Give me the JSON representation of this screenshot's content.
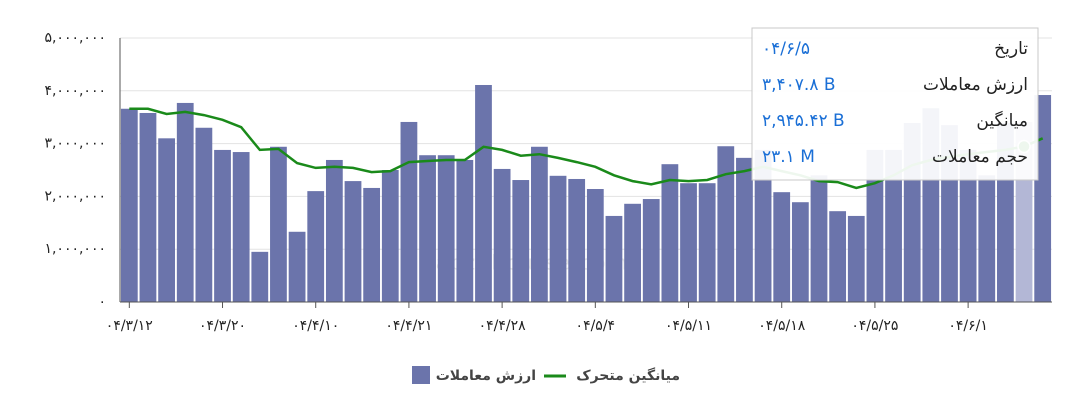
{
  "chart_data": {
    "type": "bar-line",
    "watermark": "nabzebourse.com",
    "categories": [
      "۰۴/۳/۱۲",
      null,
      null,
      null,
      null,
      "۰۴/۳/۲۰",
      null,
      null,
      null,
      null,
      "۰۴/۴/۱۰",
      null,
      null,
      null,
      null,
      "۰۴/۴/۲۱",
      null,
      null,
      null,
      null,
      "۰۴/۴/۲۸",
      null,
      null,
      null,
      null,
      "۰۴/۵/۴",
      null,
      null,
      null,
      null,
      "۰۴/۵/۱۱",
      null,
      null,
      null,
      null,
      "۰۴/۵/۱۸",
      null,
      null,
      null,
      null,
      "۰۴/۵/۲۵",
      null,
      null,
      null,
      null,
      "۰۴/۶/۱",
      null,
      null,
      null,
      null
    ],
    "series": [
      {
        "name": "ارزش معاملات",
        "type": "bar",
        "color": "#6b74ab",
        "values": [
          3660000,
          3580000,
          3100000,
          3770000,
          3300000,
          2880000,
          2840000,
          950000,
          2940000,
          1330000,
          2100000,
          2690000,
          2290000,
          2160000,
          2500000,
          3410000,
          2780000,
          2780000,
          2690000,
          4110000,
          2520000,
          2310000,
          2940000,
          2390000,
          2330000,
          2140000,
          1630000,
          1860000,
          1950000,
          2610000,
          2250000,
          2250000,
          2950000,
          2730000,
          2880000,
          2080000,
          1890000,
          2400000,
          1720000,
          1630000,
          2880000,
          2880000,
          3390000,
          3670000,
          3350000,
          2880000,
          2400000,
          3390000,
          3407800,
          3920000
        ]
      },
      {
        "name": "میانگین متحرک",
        "type": "line",
        "color": "#1a8a1a",
        "values": [
          3660000,
          3660000,
          3560000,
          3600000,
          3540000,
          3450000,
          3310000,
          2880000,
          2900000,
          2630000,
          2540000,
          2560000,
          2540000,
          2460000,
          2480000,
          2650000,
          2670000,
          2690000,
          2690000,
          2940000,
          2880000,
          2770000,
          2800000,
          2730000,
          2650000,
          2560000,
          2400000,
          2290000,
          2230000,
          2310000,
          2290000,
          2310000,
          2420000,
          2480000,
          2560000,
          2480000,
          2400000,
          2290000,
          2270000,
          2160000,
          2250000,
          2400000,
          2590000,
          2690000,
          2750000,
          2800000,
          2840000,
          2880000,
          2945420,
          3100000
        ]
      }
    ],
    "ylim": [
      0,
      5000000
    ],
    "yticks": [
      {
        "value": 0,
        "label": "۰"
      },
      {
        "value": 1000000,
        "label": "۱,۰۰۰,۰۰۰"
      },
      {
        "value": 2000000,
        "label": "۲,۰۰۰,۰۰۰"
      },
      {
        "value": 3000000,
        "label": "۳,۰۰۰,۰۰۰"
      },
      {
        "value": 4000000,
        "label": "۴,۰۰۰,۰۰۰"
      },
      {
        "value": 5000000,
        "label": "۵,۰۰۰,۰۰۰"
      }
    ],
    "grid": true,
    "hover": {
      "index": 48,
      "color": "#b3b7d6",
      "tooltip": [
        {
          "label": "تاریخ",
          "value": "۰۴/۶/۵"
        },
        {
          "label": "ارزش معاملات",
          "value": "۳,۴۰۷.۸ B"
        },
        {
          "label": "میانگین",
          "value": "۲,۹۴۵.۴۲ B"
        },
        {
          "label": "حجم معاملات",
          "value": "۲۳.۱ M"
        }
      ]
    }
  }
}
